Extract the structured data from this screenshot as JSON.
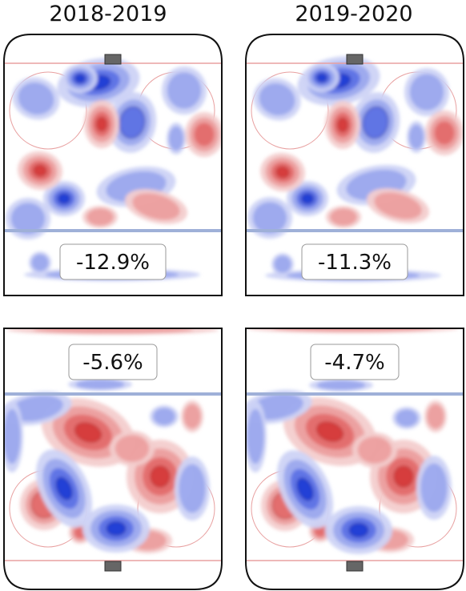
{
  "chart_data": {
    "type": "heatmap",
    "title": "",
    "xlabel": "",
    "ylabel": "",
    "columns": [
      "2018-2019",
      "2019-2020"
    ],
    "panels": [
      {
        "season": "2018-2019",
        "zone": "offensive",
        "value_label": "-12.9%",
        "value": -12.9
      },
      {
        "season": "2019-2020",
        "zone": "offensive",
        "value_label": "-11.3%",
        "value": -11.3
      },
      {
        "season": "2018-2019",
        "zone": "defensive",
        "value_label": "-5.6%",
        "value": -5.6
      },
      {
        "season": "2019-2020",
        "zone": "defensive",
        "value_label": "-4.7%",
        "value": -4.7
      }
    ],
    "colors": {
      "above_average": "#d62728",
      "below_average": "#1f3fd6",
      "board": "#111111",
      "blue_line": "#9fb0d8",
      "goal_line": "#e8a0a0"
    },
    "grid": false,
    "legend": "none"
  }
}
